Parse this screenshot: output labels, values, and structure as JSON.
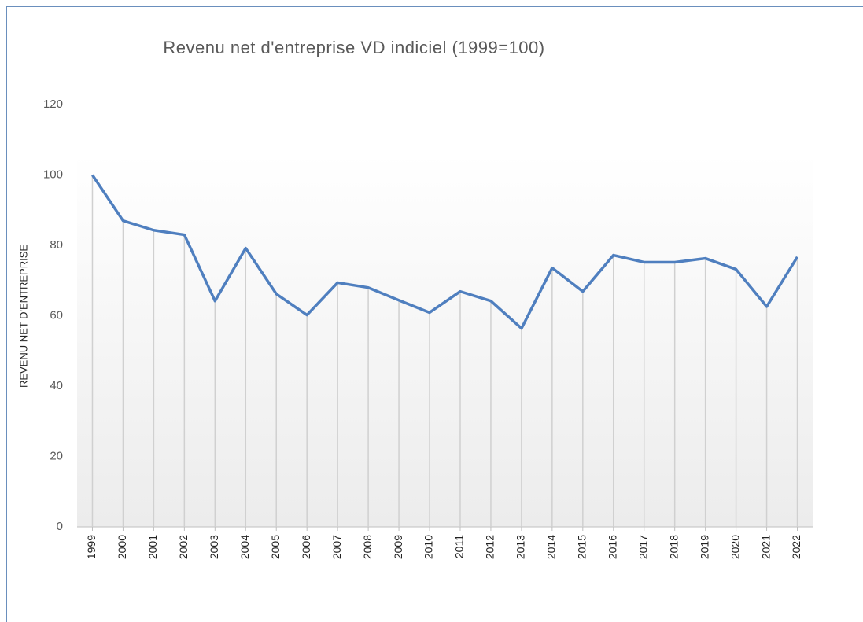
{
  "chart_data": {
    "type": "line",
    "title": "Revenu net d'entreprise VD indiciel (1999=100)",
    "y_label": "REVENU NET D'ENTREPRISE",
    "categories": [
      "1999",
      "2000",
      "2001",
      "2002",
      "2003",
      "2004",
      "2005",
      "2006",
      "2007",
      "2008",
      "2009",
      "2010",
      "2011",
      "2012",
      "2013",
      "2014",
      "2015",
      "2016",
      "2017",
      "2018",
      "2019",
      "2020",
      "2021",
      "2022"
    ],
    "series": [
      {
        "name": "Revenu net d'entreprise",
        "color": "#4f7fbf",
        "values": [
          100,
          87.0,
          84.3,
          83.0,
          64.2,
          79.2,
          66.2,
          60.2,
          69.4,
          68.0,
          64.4,
          60.9,
          66.9,
          64.2,
          56.4,
          73.6,
          66.9,
          77.2,
          75.2,
          75.2,
          76.3,
          73.2,
          62.6,
          76.7
        ]
      }
    ],
    "ylim": [
      0,
      120
    ],
    "yticks": [
      0,
      20,
      40,
      60,
      80,
      100,
      120
    ],
    "drop_lines": true
  }
}
